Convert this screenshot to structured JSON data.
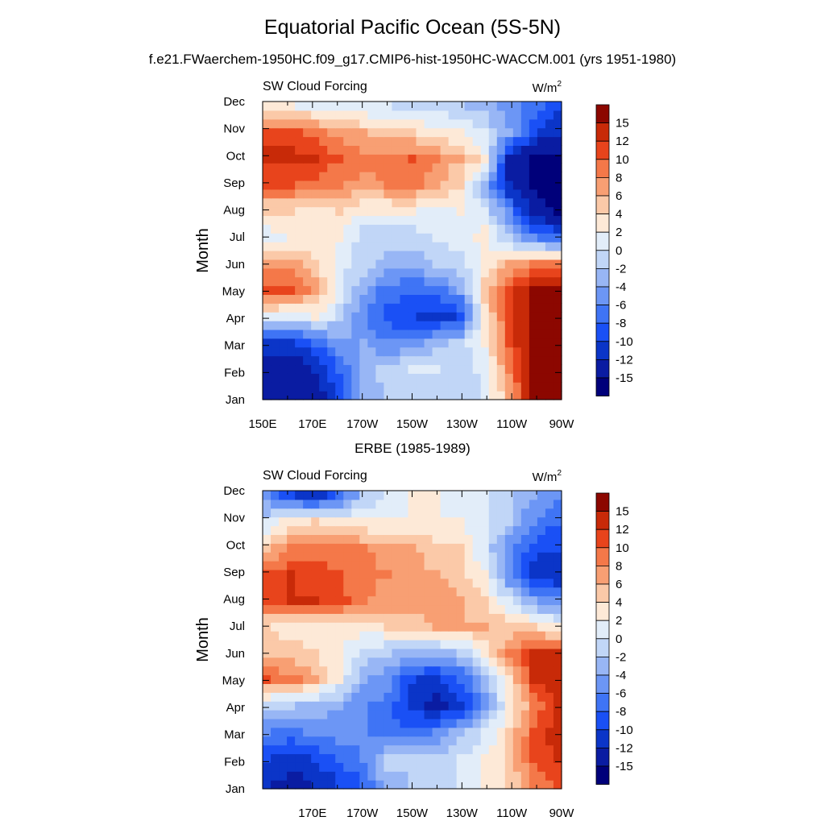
{
  "figure": {
    "title": "Equatorial Pacific Ocean (5S-5N)",
    "subtitle": "f.e21.FWaerchem-1950HC.f09_g17.CMIP6-hist-1950HC-WACCM.001 (yrs 1951-1980)",
    "second_panel_title": "ERBE (1985-1989)"
  },
  "chart_data": [
    {
      "type": "heatmap",
      "name": "model-panel",
      "title": "",
      "left_label": "SW Cloud Forcing",
      "unit_base": "W/m",
      "unit_exp": "2",
      "ylabel": "Month",
      "xlabel": "",
      "x_range_deg_east": [
        150,
        270
      ],
      "x_ticks": [
        {
          "value": 150,
          "label": "150E"
        },
        {
          "value": 170,
          "label": "170E"
        },
        {
          "value": 190,
          "label": "170W"
        },
        {
          "value": 210,
          "label": "150W"
        },
        {
          "value": 230,
          "label": "130W"
        },
        {
          "value": 250,
          "label": "110W"
        },
        {
          "value": 270,
          "label": "90W"
        }
      ],
      "y_ticks": [
        "Jan",
        "Feb",
        "Mar",
        "Apr",
        "May",
        "Jun",
        "Jul",
        "Aug",
        "Sep",
        "Oct",
        "Nov",
        "Dec"
      ],
      "x": [
        150,
        160,
        170,
        180,
        190,
        200,
        210,
        220,
        230,
        240,
        250,
        260,
        270
      ],
      "months": [
        "Jan",
        "Feb",
        "Mar",
        "Apr",
        "May",
        "Jun",
        "Jul",
        "Aug",
        "Sep",
        "Oct",
        "Nov",
        "Dec"
      ],
      "values": [
        [
          -14,
          -15,
          -14,
          -9,
          -4,
          -2,
          -1,
          -2,
          -2,
          0,
          6,
          16,
          16
        ],
        [
          -13,
          -14,
          -12,
          -8,
          -3,
          -1,
          0,
          0,
          -1,
          1,
          8,
          17,
          17
        ],
        [
          -11,
          -11,
          -8,
          -5,
          -4,
          -6,
          -5,
          -3,
          -1,
          2,
          10,
          17,
          17
        ],
        [
          1,
          0,
          2,
          -1,
          -6,
          -9,
          -10,
          -11,
          -10,
          3,
          11,
          17,
          17
        ],
        [
          11,
          11,
          7,
          1,
          -4,
          -7,
          -8,
          -7,
          -4,
          5,
          11,
          15,
          16
        ],
        [
          7,
          7,
          4,
          1,
          -1,
          -3,
          -3,
          -2,
          -1,
          2,
          6,
          8,
          8
        ],
        [
          1,
          2,
          3,
          2,
          -1,
          -1,
          -1,
          0,
          1,
          3,
          -2,
          -6,
          -8
        ],
        [
          4,
          4,
          3,
          4,
          2,
          2,
          2,
          1,
          2,
          0,
          -6,
          -13,
          -16
        ],
        [
          10,
          10,
          9,
          8,
          7,
          8,
          9,
          6,
          4,
          -4,
          -12,
          -16,
          -16
        ],
        [
          13,
          13,
          12,
          10,
          9,
          9,
          10,
          8,
          6,
          3,
          -13,
          -16,
          -16
        ],
        [
          11,
          11,
          9,
          7,
          6,
          5,
          4,
          3,
          2,
          0,
          -4,
          -9,
          -12
        ],
        [
          2,
          2,
          1,
          1,
          0,
          0,
          -1,
          -1,
          -2,
          -3,
          -5,
          -7,
          -9
        ]
      ],
      "colorbar_labels": [
        "15",
        "12",
        "10",
        "8",
        "6",
        "4",
        "2",
        "0",
        "-2",
        "-4",
        "-6",
        "-8",
        "-10",
        "-12",
        "-15"
      ]
    },
    {
      "type": "heatmap",
      "name": "erbe-panel",
      "title": "ERBE (1985-1989)",
      "left_label": "SW Cloud Forcing",
      "unit_base": "W/m",
      "unit_exp": "2",
      "ylabel": "Month",
      "xlabel": "",
      "x_range_deg_east": [
        150,
        270
      ],
      "x_ticks": [
        {
          "value": 170,
          "label": "170E"
        },
        {
          "value": 190,
          "label": "170W"
        },
        {
          "value": 210,
          "label": "150W"
        },
        {
          "value": 230,
          "label": "130W"
        },
        {
          "value": 250,
          "label": "110W"
        },
        {
          "value": 270,
          "label": "90W"
        }
      ],
      "y_ticks": [
        "Jan",
        "Feb",
        "Mar",
        "Apr",
        "May",
        "Jun",
        "Jul",
        "Aug",
        "Sep",
        "Oct",
        "Nov",
        "Dec"
      ],
      "x": [
        150,
        160,
        170,
        180,
        190,
        200,
        210,
        220,
        230,
        240,
        250,
        260,
        270
      ],
      "months": [
        "Jan",
        "Feb",
        "Mar",
        "Apr",
        "May",
        "Jun",
        "Jul",
        "Aug",
        "Sep",
        "Oct",
        "Nov",
        "Dec"
      ],
      "values": [
        [
          -12,
          -13,
          -12,
          -10,
          -8,
          -3,
          -2,
          -1,
          0,
          2,
          4,
          8,
          10
        ],
        [
          -10,
          -11,
          -10,
          -8,
          -6,
          -1,
          -2,
          -2,
          0,
          2,
          5,
          10,
          12
        ],
        [
          -6,
          -7,
          -5,
          -5,
          -6,
          -8,
          -7,
          -6,
          -3,
          0,
          4,
          10,
          14
        ],
        [
          -2,
          -2,
          -3,
          -4,
          -6,
          -7,
          -11,
          -13,
          -11,
          -5,
          2,
          8,
          12
        ],
        [
          10,
          9,
          6,
          2,
          -4,
          -5,
          -10,
          -11,
          -8,
          -3,
          3,
          12,
          14
        ],
        [
          5,
          5,
          4,
          2,
          -1,
          -2,
          -3,
          -3,
          -2,
          3,
          8,
          12,
          12
        ],
        [
          4,
          3,
          2,
          3,
          3,
          4,
          5,
          6,
          6,
          6,
          5,
          4,
          2
        ],
        [
          10,
          12,
          12,
          11,
          8,
          7,
          7,
          7,
          6,
          4,
          0,
          -4,
          -6
        ],
        [
          10,
          12,
          11,
          10,
          9,
          8,
          7,
          6,
          5,
          2,
          -6,
          -11,
          -12
        ],
        [
          5,
          8,
          9,
          8,
          8,
          7,
          6,
          5,
          4,
          0,
          -6,
          -9,
          -10
        ],
        [
          0,
          3,
          4,
          3,
          2,
          2,
          2,
          2,
          2,
          1,
          -2,
          -6,
          -8
        ],
        [
          -6,
          -10,
          -12,
          -8,
          -2,
          0,
          2,
          2,
          1,
          1,
          -2,
          -4,
          -6
        ]
      ],
      "colorbar_labels": [
        "15",
        "12",
        "10",
        "8",
        "6",
        "4",
        "2",
        "0",
        "-2",
        "-4",
        "-6",
        "-8",
        "-10",
        "-12",
        "-15"
      ]
    }
  ],
  "colors": {
    "scale": [
      "#00007a",
      "#0a1ca2",
      "#0b35c8",
      "#1a50f5",
      "#3f74f5",
      "#6c96f5",
      "#98b6f5",
      "#c1d6f7",
      "#e2edf9",
      "#fde9d7",
      "#fbc9a8",
      "#f89f73",
      "#f47849",
      "#e8441c",
      "#c82a08",
      "#8c0700"
    ],
    "bounds": [
      -15,
      -12,
      -10,
      -8,
      -6,
      -4,
      -2,
      0,
      2,
      4,
      6,
      8,
      10,
      12,
      15
    ]
  }
}
